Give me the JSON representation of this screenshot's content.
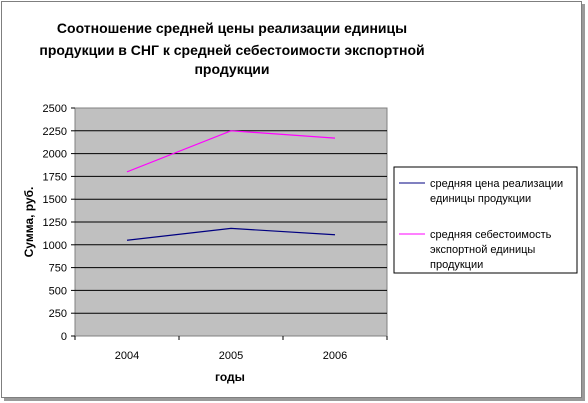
{
  "chart_data": {
    "type": "line",
    "title_lines": [
      "Соотношение средней цены реализации единицы",
      "продукции в СНГ к средней себестоимости экспортной",
      "продукции"
    ],
    "xlabel": "годы",
    "ylabel": "Сумма, руб.",
    "categories": [
      "2004",
      "2005",
      "2006"
    ],
    "ylim": [
      0,
      2500
    ],
    "yticks": [
      0,
      250,
      500,
      750,
      1000,
      1250,
      1500,
      1750,
      2000,
      2250,
      2500
    ],
    "grid": true,
    "legend_position": "right",
    "series": [
      {
        "name_lines": [
          "средняя цена реализации",
          "единицы продукции"
        ],
        "values": [
          1050,
          1180,
          1110
        ],
        "color": "#000080"
      },
      {
        "name_lines": [
          "средняя себестоимость",
          "экспортной единицы",
          "продукции"
        ],
        "values": [
          1800,
          2250,
          2170
        ],
        "color": "#ff00ff"
      }
    ],
    "plot_background": "#c0c0c0"
  }
}
